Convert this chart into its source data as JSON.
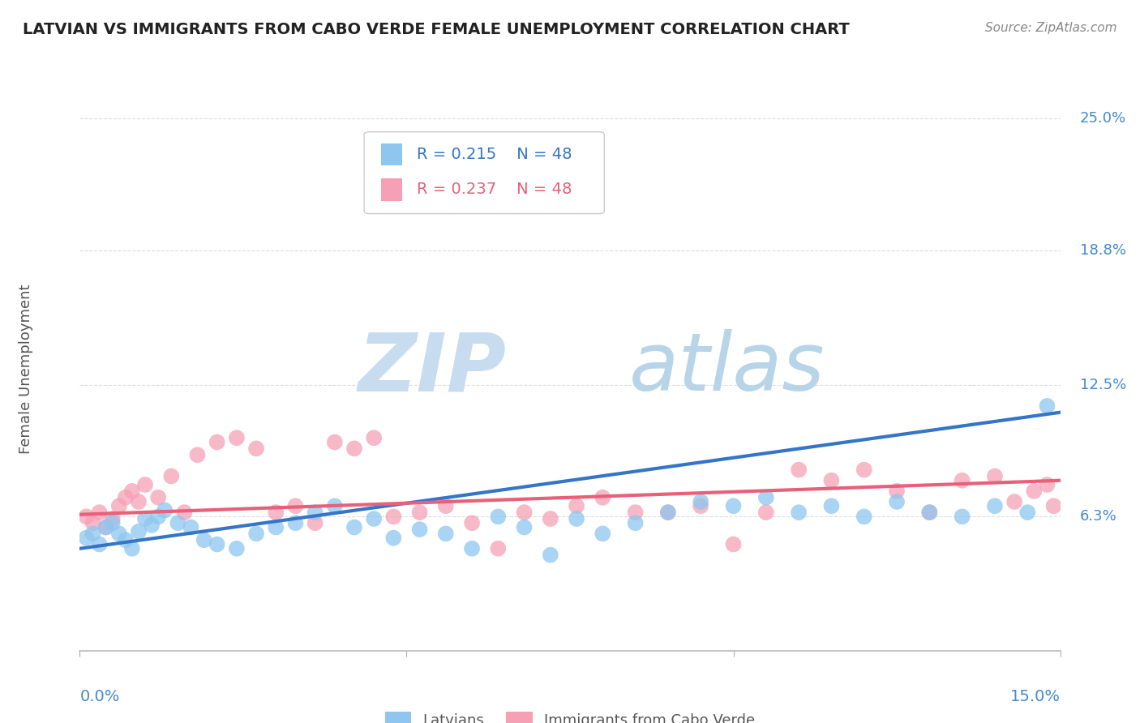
{
  "title": "LATVIAN VS IMMIGRANTS FROM CABO VERDE FEMALE UNEMPLOYMENT CORRELATION CHART",
  "source": "Source: ZipAtlas.com",
  "ylabel": "Female Unemployment",
  "xlim": [
    0.0,
    0.15
  ],
  "ylim": [
    0.0,
    0.265
  ],
  "ytick_positions": [
    0.063,
    0.125,
    0.188,
    0.25
  ],
  "ytick_labels": [
    "6.3%",
    "12.5%",
    "18.8%",
    "25.0%"
  ],
  "latvian_color": "#8EC6F0",
  "cabo_verde_color": "#F5A0B5",
  "latvian_line_color": "#3575C8",
  "cabo_verde_line_color": "#E8607A",
  "legend_label_1": "Latvians",
  "legend_label_2": "Immigrants from Cabo Verde",
  "R1": 0.215,
  "N1": 48,
  "R2": 0.237,
  "N2": 48,
  "latvians_x": [
    0.001,
    0.002,
    0.003,
    0.004,
    0.005,
    0.006,
    0.007,
    0.008,
    0.009,
    0.01,
    0.011,
    0.012,
    0.013,
    0.015,
    0.017,
    0.019,
    0.021,
    0.024,
    0.027,
    0.03,
    0.033,
    0.036,
    0.039,
    0.042,
    0.045,
    0.048,
    0.052,
    0.056,
    0.06,
    0.064,
    0.068,
    0.072,
    0.076,
    0.08,
    0.085,
    0.09,
    0.095,
    0.1,
    0.105,
    0.11,
    0.115,
    0.12,
    0.125,
    0.13,
    0.135,
    0.14,
    0.145,
    0.148
  ],
  "latvians_y": [
    0.053,
    0.055,
    0.05,
    0.058,
    0.06,
    0.055,
    0.052,
    0.048,
    0.056,
    0.062,
    0.059,
    0.063,
    0.066,
    0.06,
    0.058,
    0.052,
    0.05,
    0.048,
    0.055,
    0.058,
    0.06,
    0.065,
    0.068,
    0.058,
    0.062,
    0.053,
    0.057,
    0.055,
    0.048,
    0.063,
    0.058,
    0.045,
    0.062,
    0.055,
    0.06,
    0.065,
    0.07,
    0.068,
    0.072,
    0.065,
    0.068,
    0.063,
    0.07,
    0.065,
    0.063,
    0.068,
    0.065,
    0.115
  ],
  "cabo_verde_x": [
    0.001,
    0.002,
    0.003,
    0.004,
    0.005,
    0.006,
    0.007,
    0.008,
    0.009,
    0.01,
    0.012,
    0.014,
    0.016,
    0.018,
    0.021,
    0.024,
    0.027,
    0.03,
    0.033,
    0.036,
    0.039,
    0.042,
    0.045,
    0.048,
    0.052,
    0.056,
    0.06,
    0.064,
    0.068,
    0.072,
    0.076,
    0.08,
    0.085,
    0.09,
    0.095,
    0.1,
    0.105,
    0.11,
    0.115,
    0.12,
    0.125,
    0.13,
    0.135,
    0.14,
    0.143,
    0.146,
    0.148,
    0.149
  ],
  "cabo_verde_y": [
    0.063,
    0.06,
    0.065,
    0.058,
    0.062,
    0.068,
    0.072,
    0.075,
    0.07,
    0.078,
    0.072,
    0.082,
    0.065,
    0.092,
    0.098,
    0.1,
    0.095,
    0.065,
    0.068,
    0.06,
    0.098,
    0.095,
    0.1,
    0.063,
    0.065,
    0.068,
    0.06,
    0.048,
    0.065,
    0.062,
    0.068,
    0.072,
    0.065,
    0.065,
    0.068,
    0.05,
    0.065,
    0.085,
    0.08,
    0.085,
    0.075,
    0.065,
    0.08,
    0.082,
    0.07,
    0.075,
    0.078,
    0.068
  ],
  "watermark_zip": "ZIP",
  "watermark_atlas": "atlas",
  "background_color": "#FFFFFF",
  "grid_color": "#DDDDDD"
}
